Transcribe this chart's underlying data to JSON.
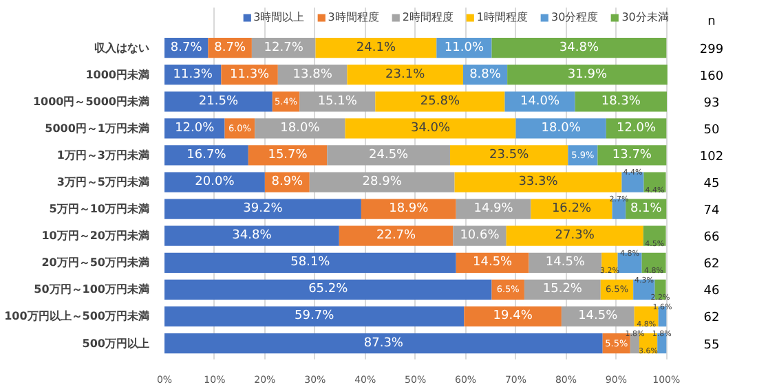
{
  "chart_data": {
    "type": "bar",
    "orientation": "horizontal",
    "stacked": true,
    "categories": [
      "収入はない",
      "1000円未満",
      "1000円～5000円未満",
      "5000円～1万円未満",
      "1万円～3万円未満",
      "3万円～5万円未満",
      "5万円～10万円未満",
      "10万円～20万円未満",
      "20万円～50万円未満",
      "50万円～100万円未満",
      "100万円以上～500万円未満",
      "500万円以上"
    ],
    "series": [
      {
        "name": "3時間以上",
        "color": "#4472c4",
        "values": [
          8.7,
          11.3,
          21.5,
          12.0,
          16.7,
          20.0,
          39.2,
          34.8,
          58.1,
          65.2,
          59.7,
          87.3
        ],
        "value_labels": [
          "8.7%",
          "11.3%",
          "21.5%",
          "12.0%",
          "16.7%",
          "20.0%",
          "39.2%",
          "34.8%",
          "58.1%",
          "65.2%",
          "59.7%",
          "87.3%"
        ]
      },
      {
        "name": "3時間程度",
        "color": "#ed7d31",
        "values": [
          8.7,
          11.3,
          5.4,
          6.0,
          15.7,
          8.9,
          18.9,
          22.7,
          14.5,
          6.5,
          19.4,
          5.5
        ],
        "value_labels": [
          "8.7%",
          "11.3%",
          "5.4%",
          "6.0%",
          "15.7%",
          "8.9%",
          "18.9%",
          "22.7%",
          "14.5%",
          "6.5%",
          "19.4%",
          "5.5%"
        ]
      },
      {
        "name": "2時間程度",
        "color": "#a5a5a5",
        "values": [
          12.7,
          13.8,
          15.1,
          18.0,
          24.5,
          28.9,
          14.9,
          10.6,
          14.5,
          15.2,
          14.5,
          1.8
        ],
        "value_labels": [
          "12.7%",
          "13.8%",
          "15.1%",
          "18.0%",
          "24.5%",
          "28.9%",
          "14.9%",
          "10.6%",
          "14.5%",
          "15.2%",
          "14.5%",
          "1.8%"
        ]
      },
      {
        "name": "1時間程度",
        "color": "#ffc000",
        "values": [
          24.1,
          23.1,
          25.8,
          34.0,
          23.5,
          33.3,
          16.2,
          27.3,
          3.2,
          6.5,
          4.8,
          3.6
        ],
        "value_labels": [
          "24.1%",
          "23.1%",
          "25.8%",
          "34.0%",
          "23.5%",
          "33.3%",
          "16.2%",
          "27.3%",
          "3.2%",
          "6.5%",
          "4.8%",
          "3.6%"
        ]
      },
      {
        "name": "30分程度",
        "color": "#5b9bd5",
        "values": [
          11.0,
          8.8,
          14.0,
          18.0,
          5.9,
          4.4,
          2.7,
          0,
          4.8,
          4.3,
          1.6,
          1.8
        ],
        "value_labels": [
          "11.0%",
          "8.8%",
          "14.0%",
          "18.0%",
          "5.9%",
          "4.4%",
          "2.7%",
          null,
          "4.8%",
          "4.3%",
          "1.6%",
          "1.8%"
        ]
      },
      {
        "name": "30分未満",
        "color": "#70ad47",
        "values": [
          34.8,
          31.9,
          18.3,
          12.0,
          13.7,
          4.4,
          8.1,
          4.5,
          4.8,
          2.2,
          0,
          0
        ],
        "value_labels": [
          "34.8%",
          "31.9%",
          "18.3%",
          "12.0%",
          "13.7%",
          "4.4%",
          "8.1%",
          "4.5%",
          "4.8%",
          "2.2%",
          null,
          null
        ]
      }
    ],
    "xlim": [
      0,
      100
    ],
    "xticks": [
      {
        "value": 0,
        "label": "0%"
      },
      {
        "value": 10,
        "label": "10%"
      },
      {
        "value": 20,
        "label": "20%"
      },
      {
        "value": 30,
        "label": "30%"
      },
      {
        "value": 40,
        "label": "40%"
      },
      {
        "value": 50,
        "label": "50%"
      },
      {
        "value": 60,
        "label": "60%"
      },
      {
        "value": 70,
        "label": "70%"
      },
      {
        "value": 80,
        "label": "80%"
      },
      {
        "value": 90,
        "label": "90%"
      },
      {
        "value": 100,
        "label": "100%"
      }
    ],
    "grid": "x",
    "legend": "top",
    "annotations": [
      "n",
      "299",
      "160",
      "93",
      "50",
      "102",
      "45",
      "74",
      "66",
      "62",
      "46",
      "62",
      "55"
    ]
  }
}
